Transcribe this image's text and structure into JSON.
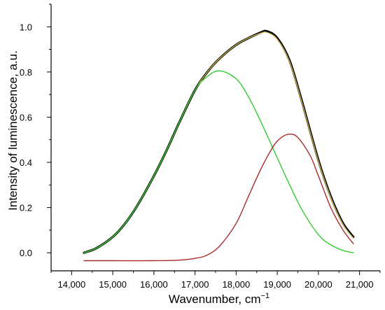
{
  "chart_data": {
    "type": "line",
    "title": "",
    "xlabel": "Wavenumber, cm",
    "xlabel_sup": "−1",
    "ylabel": "Intensity of luminescence, a.u.",
    "xlim": [
      13500,
      21500
    ],
    "ylim": [
      -0.08,
      1.1
    ],
    "xticks": [
      14000,
      15000,
      16000,
      17000,
      18000,
      19000,
      20000,
      21000
    ],
    "xtick_labels": [
      "14,000",
      "15,000",
      "16,000",
      "17,000",
      "18,000",
      "19,000",
      "20,000",
      "21,000"
    ],
    "yticks": [
      0.0,
      0.2,
      0.4,
      0.6,
      0.8,
      1.0
    ],
    "ytick_labels": [
      "0.0",
      "0.2",
      "0.4",
      "0.6",
      "0.8",
      "1.0"
    ],
    "grid": false,
    "legend": "none",
    "series": [
      {
        "color": "#000000",
        "x": [
          14300,
          14600,
          15000,
          15300,
          15600,
          16000,
          16300,
          16600,
          17000,
          17300,
          17600,
          18000,
          18300,
          18600,
          18750,
          19000,
          19300,
          19600,
          20000,
          20300,
          20600,
          20850
        ],
        "y": [
          0.0,
          0.02,
          0.07,
          0.13,
          0.21,
          0.34,
          0.45,
          0.57,
          0.72,
          0.8,
          0.86,
          0.92,
          0.95,
          0.975,
          0.98,
          0.95,
          0.85,
          0.67,
          0.41,
          0.25,
          0.13,
          0.07
        ]
      },
      {
        "color": "#d4b84a",
        "x": [
          14300,
          14600,
          15000,
          15300,
          15600,
          16000,
          16300,
          16600,
          17000,
          17300,
          17600,
          18000,
          18300,
          18600,
          18750,
          19000,
          19300,
          19600,
          20000,
          20300,
          20600,
          20850
        ],
        "y": [
          0.0,
          0.02,
          0.07,
          0.13,
          0.21,
          0.34,
          0.45,
          0.57,
          0.72,
          0.8,
          0.86,
          0.92,
          0.95,
          0.972,
          0.975,
          0.945,
          0.845,
          0.665,
          0.405,
          0.245,
          0.125,
          0.065
        ]
      },
      {
        "color": "#33cc33",
        "x": [
          14300,
          14600,
          15000,
          15300,
          15600,
          16000,
          16300,
          16600,
          17000,
          17300,
          17600,
          18000,
          18300,
          18600,
          19000,
          19300,
          19600,
          20000,
          20300,
          20600,
          20850
        ],
        "y": [
          0.0,
          0.02,
          0.07,
          0.13,
          0.21,
          0.34,
          0.45,
          0.57,
          0.72,
          0.78,
          0.805,
          0.77,
          0.69,
          0.58,
          0.42,
          0.3,
          0.19,
          0.08,
          0.035,
          0.01,
          0.0
        ]
      },
      {
        "color": "#aa2a2a",
        "x": [
          14300,
          15000,
          16000,
          16600,
          17000,
          17300,
          17600,
          18000,
          18300,
          18600,
          18900,
          19100,
          19300,
          19500,
          19800,
          20000,
          20300,
          20600,
          20850
        ],
        "y": [
          -0.035,
          -0.035,
          -0.035,
          -0.033,
          -0.025,
          -0.01,
          0.03,
          0.13,
          0.25,
          0.37,
          0.47,
          0.51,
          0.525,
          0.51,
          0.43,
          0.34,
          0.2,
          0.1,
          0.04
        ]
      }
    ]
  }
}
